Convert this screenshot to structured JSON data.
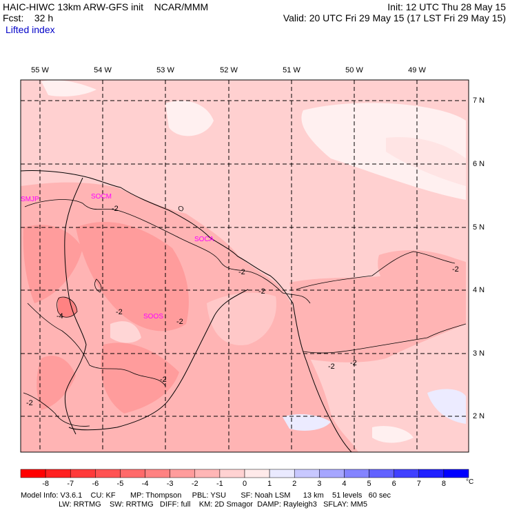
{
  "header": {
    "left_line1": "HAIC-HIWC 13km ARW-GFS init    NCAR/MMM",
    "left_line2": "Fcst:    32 h",
    "field_name": "Lifted index",
    "right_line1": "Init: 12 UTC Thu 28 May 15",
    "right_line2": "Valid: 20 UTC Fri 29 May 15 (17 LST Fri 29 May 15)"
  },
  "map": {
    "longitude_labels": [
      "55 W",
      "54 W",
      "53 W",
      "52 W",
      "51 W",
      "50 W",
      "49 W"
    ],
    "latitude_labels": [
      "7 N",
      "6 N",
      "5 N",
      "4 N",
      "3 N",
      "2 N"
    ],
    "stations": [
      {
        "id": "SMJP",
        "label": "SMJP"
      },
      {
        "id": "SOCM",
        "label": "SOCM"
      },
      {
        "id": "SOCA",
        "label": "SOCA"
      },
      {
        "id": "SOOS",
        "label": "SOOS"
      }
    ],
    "contour_labels": [
      "-2",
      "-2",
      "-2",
      "-2",
      "-2",
      "-2",
      "-2",
      "-2",
      "-4",
      "-2",
      "-2"
    ],
    "colors": {
      "ocean_light_pink": "#ffd0d0",
      "land_pink": "#ffb4b4",
      "strong_pink": "#ff9494",
      "near_zero": "#fff0f0",
      "positive_light_blue": "#ecebff",
      "station_label": "#ff00ff"
    }
  },
  "colorbar": {
    "ticks": [
      "-8",
      "-7",
      "-6",
      "-5",
      "-4",
      "-3",
      "-2",
      "-1",
      "0",
      "1",
      "2",
      "3",
      "4",
      "5",
      "6",
      "7",
      "8"
    ],
    "unit": "°C",
    "colors": [
      "#ff0000",
      "#ff2020",
      "#ff3a3a",
      "#ff5252",
      "#ff6a6a",
      "#ff8282",
      "#ff9c9c",
      "#ffb6b6",
      "#ffd2d2",
      "#ffeaea",
      "#eaeaff",
      "#c8c8ff",
      "#a6a6ff",
      "#8484ff",
      "#6262ff",
      "#4040ff",
      "#2020ff",
      "#0000ff"
    ]
  },
  "footer": {
    "line1": "Model Info: V3.6.1    CU: KF       MP: Thompson     PBL: YSU       SF: Noah LSM      13 km    51 levels   60 sec",
    "line2": "                  LW: RRTMG    SW: RRTMG   DIFF: full    KM: 2D Smagor  DAMP: Rayleigh3   SFLAY: MM5"
  }
}
